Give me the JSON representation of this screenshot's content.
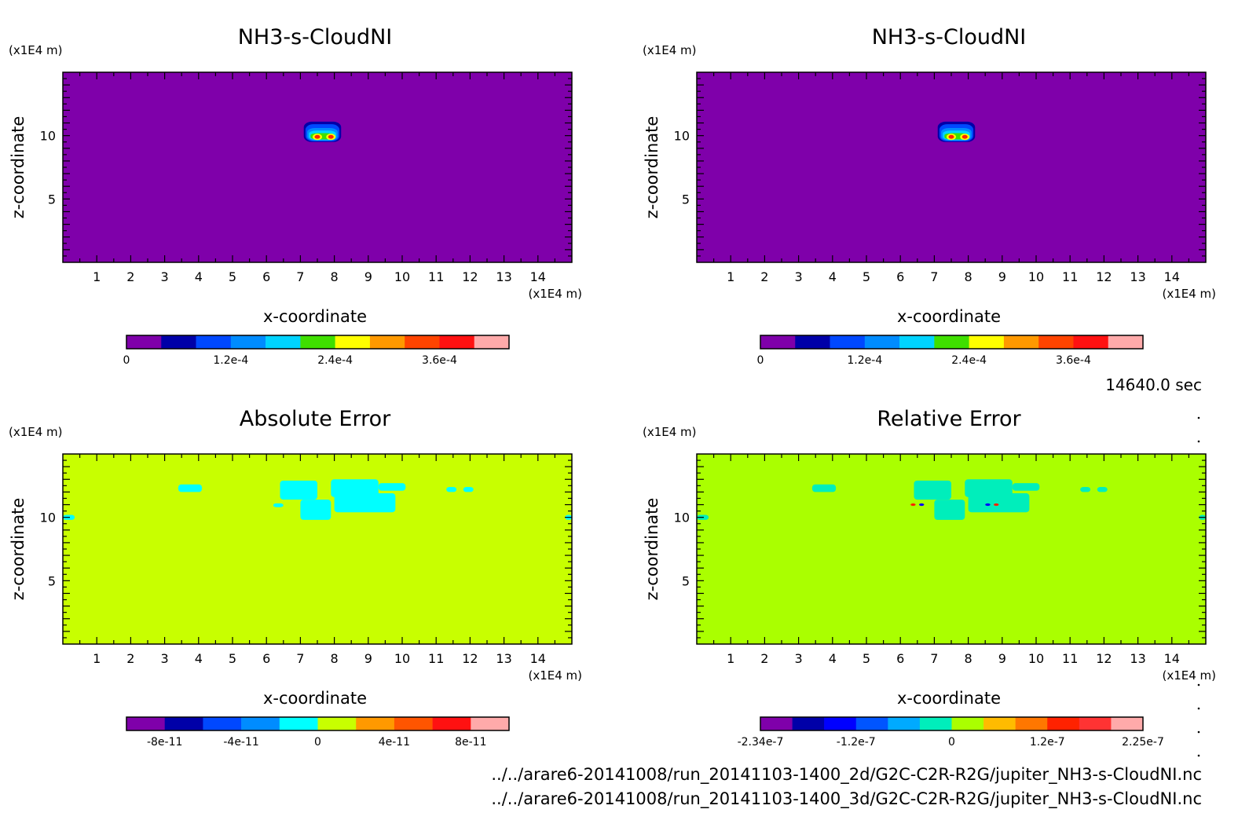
{
  "footer": {
    "time": "14640.0 sec",
    "path_2d": "../../arare6-20141008/run_20141103-1400_2d/G2C-C2R-R2G/jupiter_NH3-s-CloudNI.nc",
    "path_3d": "../../arare6-20141008/run_20141103-1400_3d/G2C-C2R-R2G/jupiter_NH3-s-CloudNI.nc"
  },
  "chart_data": [
    {
      "type": "heatmap",
      "title": "NH3-s-CloudNI",
      "xlabel": "x-coordinate",
      "ylabel": "z-coordinate",
      "x_unit": "(x1E4 m)",
      "y_unit": "(x1E4 m)",
      "xlim": [
        0,
        15
      ],
      "ylim": [
        0,
        15
      ],
      "x_ticks": [
        1,
        2,
        3,
        4,
        5,
        6,
        7,
        8,
        9,
        10,
        11,
        12,
        13,
        14
      ],
      "y_ticks": [
        5,
        10
      ],
      "background_color": "#7f00aa",
      "colorbar": {
        "colors": [
          "#7f00aa",
          "#0000a8",
          "#0048ff",
          "#008cff",
          "#00d4ff",
          "#3fdf00",
          "#ffff00",
          "#ff9900",
          "#ff4400",
          "#ff1111",
          "#ffaaaa"
        ],
        "tick_labels": [
          "0",
          "1.2e-4",
          "2.4e-4",
          "3.6e-4"
        ],
        "tick_positions": [
          0,
          3,
          6,
          9
        ]
      },
      "features": [
        {
          "shape": "blob",
          "x": [
            7.1,
            8.2
          ],
          "z": [
            9.5,
            11.1
          ],
          "levels": [
            {
              "color": "#0000a8",
              "x": [
                7.1,
                8.2
              ],
              "z": [
                9.5,
                11.1
              ]
            },
            {
              "color": "#0048ff",
              "x": [
                7.15,
                8.15
              ],
              "z": [
                9.55,
                10.9
              ]
            },
            {
              "color": "#008cff",
              "x": [
                7.2,
                8.1
              ],
              "z": [
                9.6,
                10.6
              ]
            },
            {
              "color": "#00d4ff",
              "x": [
                7.25,
                8.05
              ],
              "z": [
                9.65,
                10.4
              ]
            },
            {
              "color": "#3fdf00",
              "x": [
                7.3,
                8.0
              ],
              "z": [
                9.7,
                10.2
              ]
            }
          ],
          "peaks": [
            {
              "x": 7.5,
              "z": 9.9
            },
            {
              "x": 7.9,
              "z": 9.9
            }
          ]
        }
      ]
    },
    {
      "type": "heatmap",
      "title": "NH3-s-CloudNI",
      "xlabel": "x-coordinate",
      "ylabel": "z-coordinate",
      "x_unit": "(x1E4 m)",
      "y_unit": "(x1E4 m)",
      "xlim": [
        0,
        15
      ],
      "ylim": [
        0,
        15
      ],
      "x_ticks": [
        1,
        2,
        3,
        4,
        5,
        6,
        7,
        8,
        9,
        10,
        11,
        12,
        13,
        14
      ],
      "y_ticks": [
        5,
        10
      ],
      "background_color": "#7f00aa",
      "colorbar": {
        "colors": [
          "#7f00aa",
          "#0000a8",
          "#0048ff",
          "#008cff",
          "#00d4ff",
          "#3fdf00",
          "#ffff00",
          "#ff9900",
          "#ff4400",
          "#ff1111",
          "#ffaaaa"
        ],
        "tick_labels": [
          "0",
          "1.2e-4",
          "2.4e-4",
          "3.6e-4"
        ],
        "tick_positions": [
          0,
          3,
          6,
          9
        ]
      },
      "features": [
        {
          "shape": "blob",
          "x": [
            7.1,
            8.2
          ],
          "z": [
            9.5,
            11.1
          ],
          "levels": [
            {
              "color": "#0000a8",
              "x": [
                7.1,
                8.2
              ],
              "z": [
                9.5,
                11.1
              ]
            },
            {
              "color": "#0048ff",
              "x": [
                7.15,
                8.15
              ],
              "z": [
                9.55,
                10.9
              ]
            },
            {
              "color": "#008cff",
              "x": [
                7.2,
                8.1
              ],
              "z": [
                9.6,
                10.6
              ]
            },
            {
              "color": "#00d4ff",
              "x": [
                7.25,
                8.05
              ],
              "z": [
                9.65,
                10.4
              ]
            },
            {
              "color": "#3fdf00",
              "x": [
                7.3,
                8.0
              ],
              "z": [
                9.7,
                10.2
              ]
            }
          ],
          "peaks": [
            {
              "x": 7.5,
              "z": 9.9
            },
            {
              "x": 7.9,
              "z": 9.9
            }
          ]
        }
      ]
    },
    {
      "type": "heatmap",
      "title": "Absolute Error",
      "xlabel": "x-coordinate",
      "ylabel": "z-coordinate",
      "x_unit": "(x1E4 m)",
      "y_unit": "(x1E4 m)",
      "xlim": [
        0,
        15
      ],
      "ylim": [
        0,
        15
      ],
      "x_ticks": [
        1,
        2,
        3,
        4,
        5,
        6,
        7,
        8,
        9,
        10,
        11,
        12,
        13,
        14
      ],
      "y_ticks": [
        5,
        10
      ],
      "background_color": "#c8ff00",
      "colorbar": {
        "colors": [
          "#7f00aa",
          "#0000a8",
          "#0048ff",
          "#008cff",
          "#00ffff",
          "#c8ff00",
          "#ff9900",
          "#ff5500",
          "#ff1111",
          "#ffaaaa"
        ],
        "tick_labels": [
          "-8e-11",
          "-4e-11",
          "0",
          "4e-11",
          "8e-11"
        ],
        "tick_positions": [
          1,
          3,
          5,
          7,
          9
        ]
      },
      "features": [
        {
          "color": "#00ffff",
          "x": [
            3.4,
            4.1
          ],
          "z": [
            12.0,
            12.6
          ]
        },
        {
          "color": "#00ffff",
          "x": [
            6.4,
            7.5
          ],
          "z": [
            11.4,
            12.9
          ]
        },
        {
          "color": "#00ffff",
          "x": [
            7.0,
            7.9
          ],
          "z": [
            9.8,
            11.4
          ]
        },
        {
          "color": "#00ffff",
          "x": [
            7.9,
            9.3
          ],
          "z": [
            11.6,
            13.0
          ]
        },
        {
          "color": "#00ffff",
          "x": [
            8.0,
            9.8
          ],
          "z": [
            10.4,
            11.9
          ]
        },
        {
          "color": "#00ffff",
          "x": [
            9.3,
            10.1
          ],
          "z": [
            12.1,
            12.7
          ]
        },
        {
          "color": "#00ffff",
          "x": [
            6.2,
            6.5
          ],
          "z": [
            10.8,
            11.1
          ]
        },
        {
          "color": "#00ffff",
          "x": [
            11.3,
            11.6
          ],
          "z": [
            12.0,
            12.4
          ]
        },
        {
          "color": "#00ffff",
          "x": [
            11.8,
            12.1
          ],
          "z": [
            12.0,
            12.4
          ]
        },
        {
          "color": "#00ffff",
          "x": [
            0.0,
            0.35
          ],
          "z": [
            9.8,
            10.2
          ]
        },
        {
          "color": "#00ffff",
          "x": [
            14.8,
            15.0
          ],
          "z": [
            9.8,
            10.2
          ]
        }
      ]
    },
    {
      "type": "heatmap",
      "title": "Relative Error",
      "xlabel": "x-coordinate",
      "ylabel": "z-coordinate",
      "x_unit": "(x1E4 m)",
      "y_unit": "(x1E4 m)",
      "xlim": [
        0,
        15
      ],
      "ylim": [
        0,
        15
      ],
      "x_ticks": [
        1,
        2,
        3,
        4,
        5,
        6,
        7,
        8,
        9,
        10,
        11,
        12,
        13,
        14
      ],
      "y_ticks": [
        5,
        10
      ],
      "background_color": "#aaff00",
      "colorbar": {
        "colors": [
          "#7f00aa",
          "#0000a8",
          "#0000ff",
          "#0055ff",
          "#00aaff",
          "#00eebb",
          "#aaff00",
          "#ffbb00",
          "#ff7700",
          "#ff2200",
          "#ff3333",
          "#ffaaaa"
        ],
        "tick_labels": [
          "-2.34e-7",
          "-1.2e-7",
          "0",
          "1.2e-7",
          "2.25e-7"
        ],
        "tick_positions": [
          0,
          3,
          6,
          9,
          12
        ]
      },
      "features": [
        {
          "color": "#00eebb",
          "x": [
            3.4,
            4.1
          ],
          "z": [
            12.0,
            12.6
          ]
        },
        {
          "color": "#00eebb",
          "x": [
            6.4,
            7.5
          ],
          "z": [
            11.4,
            12.9
          ]
        },
        {
          "color": "#00eebb",
          "x": [
            7.0,
            7.9
          ],
          "z": [
            9.8,
            11.4
          ]
        },
        {
          "color": "#00eebb",
          "x": [
            7.9,
            9.3
          ],
          "z": [
            11.6,
            13.0
          ]
        },
        {
          "color": "#00eebb",
          "x": [
            8.0,
            9.8
          ],
          "z": [
            10.4,
            11.9
          ]
        },
        {
          "color": "#00eebb",
          "x": [
            9.3,
            10.1
          ],
          "z": [
            12.1,
            12.7
          ]
        },
        {
          "color": "#00eebb",
          "x": [
            11.3,
            11.6
          ],
          "z": [
            12.0,
            12.4
          ]
        },
        {
          "color": "#00eebb",
          "x": [
            11.8,
            12.1
          ],
          "z": [
            12.0,
            12.4
          ]
        },
        {
          "color": "#00eebb",
          "x": [
            0.0,
            0.35
          ],
          "z": [
            9.8,
            10.2
          ]
        },
        {
          "color": "#00eebb",
          "x": [
            14.8,
            15.0
          ],
          "z": [
            9.8,
            10.2
          ]
        },
        {
          "color": "#ff2200",
          "x": [
            6.3,
            6.45
          ],
          "z": [
            10.9,
            11.1
          ]
        },
        {
          "color": "#0000ff",
          "x": [
            6.55,
            6.7
          ],
          "z": [
            10.9,
            11.1
          ]
        },
        {
          "color": "#0000ff",
          "x": [
            8.5,
            8.65
          ],
          "z": [
            10.9,
            11.1
          ]
        },
        {
          "color": "#ff2200",
          "x": [
            8.75,
            8.9
          ],
          "z": [
            10.9,
            11.1
          ]
        }
      ]
    }
  ]
}
